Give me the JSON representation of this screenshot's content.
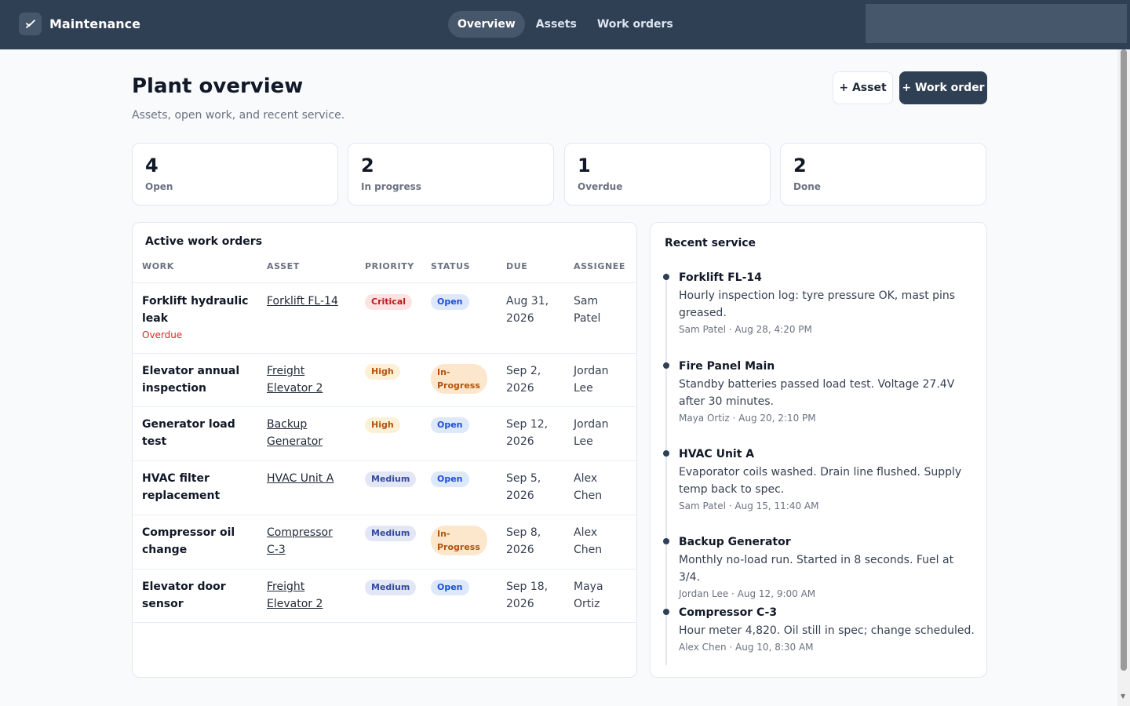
{
  "app": {
    "name": "Maintenance"
  },
  "nav": {
    "items": [
      "Overview",
      "Assets",
      "Work orders"
    ],
    "active": "Overview"
  },
  "header": {
    "title": "Plant overview",
    "subtitle": "Assets, open work, and recent service.",
    "add_asset_label": "+ Asset",
    "add_work_order_label": "+ Work order"
  },
  "stats": [
    {
      "value": "4",
      "label": "Open"
    },
    {
      "value": "2",
      "label": "In progress"
    },
    {
      "value": "1",
      "label": "Overdue"
    },
    {
      "value": "2",
      "label": "Done"
    }
  ],
  "work_orders": {
    "title": "Active work orders",
    "columns": [
      "WORK",
      "ASSET",
      "PRIORITY",
      "STATUS",
      "DUE",
      "ASSIGNEE"
    ],
    "rows": [
      {
        "work": [
          "Forklift hydraulic",
          "leak"
        ],
        "flag": "Overdue",
        "asset": [
          "Forklift FL-14"
        ],
        "priority": "Critical",
        "status": [
          "Open"
        ],
        "due": [
          "Aug 31,",
          "2026"
        ],
        "assignee": [
          "Sam",
          "Patel"
        ]
      },
      {
        "work": [
          "Elevator annual",
          "inspection"
        ],
        "flag": "",
        "asset": [
          "Freight",
          "Elevator 2"
        ],
        "priority": "High",
        "status": [
          "In-",
          "Progress"
        ],
        "due": [
          "Sep 2,",
          "2026"
        ],
        "assignee": [
          "Jordan",
          "Lee"
        ]
      },
      {
        "work": [
          "Generator load",
          "test"
        ],
        "flag": "",
        "asset": [
          "Backup",
          "Generator"
        ],
        "priority": "High",
        "status": [
          "Open"
        ],
        "due": [
          "Sep 12,",
          "2026"
        ],
        "assignee": [
          "Jordan",
          "Lee"
        ]
      },
      {
        "work": [
          "HVAC filter",
          "replacement"
        ],
        "flag": "",
        "asset": [
          "HVAC Unit A"
        ],
        "priority": "Medium",
        "status": [
          "Open"
        ],
        "due": [
          "Sep 5,",
          "2026"
        ],
        "assignee": [
          "Alex",
          "Chen"
        ]
      },
      {
        "work": [
          "Compressor oil",
          "change"
        ],
        "flag": "",
        "asset": [
          "Compressor",
          "C-3"
        ],
        "priority": "Medium",
        "status": [
          "In-",
          "Progress"
        ],
        "due": [
          "Sep 8,",
          "2026"
        ],
        "assignee": [
          "Alex",
          "Chen"
        ]
      },
      {
        "work": [
          "Elevator door",
          "sensor"
        ],
        "flag": "",
        "asset": [
          "Freight",
          "Elevator 2"
        ],
        "priority": "Medium",
        "status": [
          "Open"
        ],
        "due": [
          "Sep 18,",
          "2026"
        ],
        "assignee": [
          "Maya",
          "Ortiz"
        ]
      }
    ]
  },
  "recent_service": {
    "title": "Recent service",
    "entries": [
      {
        "asset": "Forklift FL-14",
        "lines": [
          "Hourly inspection log: tyre pressure OK, mast pins",
          "greased."
        ],
        "meta": "Sam Patel · Aug 28, 4:20 PM"
      },
      {
        "asset": "Fire Panel Main",
        "lines": [
          "Standby batteries passed load test. Voltage 27.4V",
          "after 30 minutes."
        ],
        "meta": "Maya Ortiz · Aug 20, 2:10 PM"
      },
      {
        "asset": "HVAC Unit A",
        "lines": [
          "Evaporator coils washed. Drain line flushed. Supply",
          "temp back to spec."
        ],
        "meta": "Sam Patel · Aug 15, 11:40 AM"
      },
      {
        "asset": "Backup Generator",
        "lines": [
          "Monthly no-load run. Started in 8 seconds. Fuel at 3/4."
        ],
        "meta": "Jordan Lee · Aug 12, 9:00 AM"
      },
      {
        "asset": "Compressor C-3",
        "lines": [
          "Hour meter 4,820. Oil still in spec; change scheduled."
        ],
        "meta": "Alex Chen · Aug 10, 8:30 AM"
      }
    ]
  },
  "colors": {
    "topbar": "#2f3f54",
    "critical": "#b91c1c",
    "high": "#b45309",
    "medium": "#334a9c",
    "open": "#1d4ed8",
    "overdue": "#dc2626"
  },
  "icons": {
    "brand": "wrench-check-icon"
  }
}
